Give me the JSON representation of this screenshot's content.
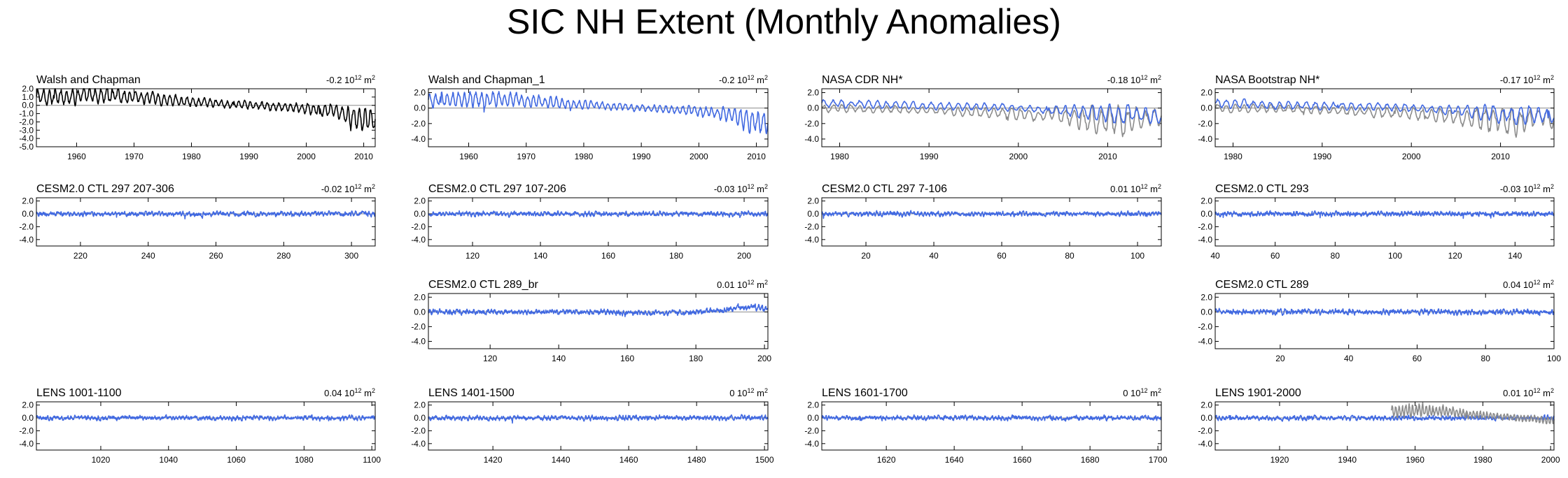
{
  "figure_title": "SIC NH Extent (Monthly Anomalies)",
  "unit_base": "10",
  "unit_exp": "12",
  "unit_m": "m",
  "unit_exp2": "2",
  "colors": {
    "obs": "#000000",
    "model": "#4169e1",
    "overlay": "#8c8c8c",
    "zeroline": "#8c8c8c",
    "axis": "#000000"
  },
  "chart_data": [
    {
      "type": "line",
      "title": "Walsh and Chapman",
      "stat": "-0.2",
      "xlim": [
        1953,
        2012
      ],
      "ylim": [
        -5,
        2
      ],
      "yticks": [
        "2.0",
        "1.0",
        "0.0",
        "-1.0",
        "-2.0",
        "-3.0",
        "-4.0",
        "-5.0"
      ],
      "xticks": [
        "1960",
        "1970",
        "1980",
        "1990",
        "2000",
        "2010"
      ],
      "series": [
        {
          "name": "Walsh and Chapman",
          "color": "#000000",
          "x": [
            1953,
            1958,
            1963,
            1968,
            1973,
            1978,
            1983,
            1988,
            1993,
            1998,
            2003,
            2006,
            2008,
            2010,
            2012
          ],
          "y": [
            1.0,
            1.1,
            1.2,
            1.1,
            0.8,
            0.5,
            0.3,
            0.1,
            -0.1,
            -0.3,
            -0.6,
            -1.0,
            -1.6,
            -1.8,
            -1.6
          ],
          "amp": [
            0.8,
            0.8,
            0.8,
            0.7,
            0.6,
            0.5,
            0.4,
            0.4,
            0.4,
            0.5,
            0.6,
            0.8,
            1.2,
            1.2,
            1.2
          ],
          "osc": 1.0
        }
      ]
    },
    {
      "type": "line",
      "title": "Walsh and Chapman_1",
      "stat": "-0.2",
      "xlim": [
        1953,
        2012
      ],
      "ylim": [
        -5,
        2.5
      ],
      "yticks": [
        "2.0",
        "0.0",
        "-2.0",
        "-4.0"
      ],
      "xticks": [
        "1960",
        "1970",
        "1980",
        "1990",
        "2000",
        "2010"
      ],
      "series": [
        {
          "name": "Walsh and Chapman_1",
          "color": "#4169e1",
          "x": [
            1953,
            1958,
            1963,
            1968,
            1973,
            1978,
            1983,
            1988,
            1993,
            1998,
            2003,
            2006,
            2008,
            2010,
            2012
          ],
          "y": [
            1.0,
            1.1,
            1.2,
            1.1,
            0.8,
            0.5,
            0.3,
            0.1,
            -0.1,
            -0.3,
            -0.6,
            -1.0,
            -1.6,
            -1.8,
            -1.6
          ],
          "amp": [
            0.8,
            0.8,
            0.8,
            0.7,
            0.6,
            0.5,
            0.4,
            0.4,
            0.4,
            0.5,
            0.6,
            0.8,
            1.2,
            1.2,
            1.2
          ],
          "osc": 1.0
        }
      ]
    },
    {
      "type": "line",
      "title": "NASA CDR NH*",
      "stat": "-0.18",
      "xlim": [
        1978,
        2016
      ],
      "ylim": [
        -5,
        2.5
      ],
      "yticks": [
        "2.0",
        "0.0",
        "-2.0",
        "-4.0"
      ],
      "xticks": [
        "1980",
        "1990",
        "2000",
        "2010"
      ],
      "series": [
        {
          "name": "NASA CDR NH* (grey)",
          "color": "#8c8c8c",
          "x": [
            1978,
            1985,
            1990,
            1995,
            2000,
            2003,
            2006,
            2008,
            2010,
            2012,
            2014,
            2016
          ],
          "y": [
            0.0,
            -0.1,
            -0.3,
            -0.5,
            -0.7,
            -0.9,
            -1.2,
            -1.5,
            -1.6,
            -1.8,
            -1.2,
            -1.3
          ],
          "amp": [
            0.4,
            0.4,
            0.4,
            0.5,
            0.6,
            0.7,
            0.9,
            1.4,
            1.4,
            1.5,
            1.0,
            0.9
          ],
          "osc": 1.0
        },
        {
          "name": "NASA CDR NH* (blue)",
          "color": "#4169e1",
          "x": [
            1978,
            1985,
            1990,
            1995,
            2000,
            2003,
            2006,
            2008,
            2010,
            2012,
            2014,
            2016
          ],
          "y": [
            0.6,
            0.4,
            0.3,
            0.2,
            0.0,
            -0.2,
            -0.4,
            -0.6,
            -0.7,
            -0.8,
            -0.9,
            -1.0
          ],
          "amp": [
            0.5,
            0.4,
            0.4,
            0.4,
            0.4,
            0.4,
            0.6,
            0.9,
            0.9,
            1.0,
            0.8,
            0.7
          ],
          "osc": 1.0
        }
      ]
    },
    {
      "type": "line",
      "title": "NASA Bootstrap NH*",
      "stat": "-0.17",
      "xlim": [
        1978,
        2016
      ],
      "ylim": [
        -5,
        2.5
      ],
      "yticks": [
        "2.0",
        "0.0",
        "-2.0",
        "-4.0"
      ],
      "xticks": [
        "1980",
        "1990",
        "2000",
        "2010"
      ],
      "series": [
        {
          "name": "NASA Bootstrap NH* (grey)",
          "color": "#8c8c8c",
          "x": [
            1978,
            1985,
            1990,
            1995,
            2000,
            2003,
            2006,
            2008,
            2010,
            2012,
            2014,
            2016
          ],
          "y": [
            0.0,
            -0.1,
            -0.3,
            -0.5,
            -0.7,
            -0.9,
            -1.2,
            -1.5,
            -1.6,
            -1.8,
            -1.2,
            -1.3
          ],
          "amp": [
            0.4,
            0.4,
            0.4,
            0.5,
            0.6,
            0.7,
            0.9,
            1.4,
            1.4,
            1.5,
            1.0,
            0.9
          ],
          "osc": 1.0
        },
        {
          "name": "NASA Bootstrap NH* (blue)",
          "color": "#4169e1",
          "x": [
            1978,
            1985,
            1990,
            1995,
            2000,
            2003,
            2006,
            2008,
            2010,
            2012,
            2014,
            2016
          ],
          "y": [
            0.6,
            0.4,
            0.3,
            0.2,
            0.0,
            -0.2,
            -0.4,
            -0.6,
            -0.7,
            -0.8,
            -0.9,
            -1.0
          ],
          "amp": [
            0.5,
            0.4,
            0.4,
            0.4,
            0.4,
            0.4,
            0.6,
            0.9,
            0.9,
            1.0,
            0.8,
            0.7
          ],
          "osc": 1.0
        }
      ]
    },
    {
      "type": "line",
      "title": "CESM2.0 CTL 297 207-306",
      "stat": "-0.02",
      "xlim": [
        207,
        307
      ],
      "ylim": [
        -5,
        2.5
      ],
      "yticks": [
        "2.0",
        "0.0",
        "-2.0",
        "-4.0"
      ],
      "xticks": [
        "220",
        "240",
        "260",
        "280",
        "300"
      ],
      "series": [
        {
          "name": "CESM2.0 CTL 297 207-306",
          "color": "#4169e1",
          "x": [
            207,
            307
          ],
          "y": [
            0.0,
            0.0
          ],
          "amp": [
            0.4,
            0.4
          ],
          "osc": 0.3
        }
      ]
    },
    {
      "type": "line",
      "title": "CESM2.0 CTL 297 107-206",
      "stat": "-0.03",
      "xlim": [
        107,
        207
      ],
      "ylim": [
        -5,
        2.5
      ],
      "yticks": [
        "2.0",
        "0.0",
        "-2.0",
        "-4.0"
      ],
      "xticks": [
        "120",
        "140",
        "160",
        "180",
        "200"
      ],
      "series": [
        {
          "name": "CESM2.0 CTL 297 107-206",
          "color": "#4169e1",
          "x": [
            107,
            207
          ],
          "y": [
            0.0,
            0.0
          ],
          "amp": [
            0.4,
            0.4
          ],
          "osc": 0.3
        }
      ]
    },
    {
      "type": "line",
      "title": "CESM2.0 CTL 297 7-106",
      "stat": "0.01",
      "xlim": [
        7,
        107
      ],
      "ylim": [
        -5,
        2.5
      ],
      "yticks": [
        "2.0",
        "0.0",
        "-2.0",
        "-4.0"
      ],
      "xticks": [
        "20",
        "40",
        "60",
        "80",
        "100"
      ],
      "series": [
        {
          "name": "CESM2.0 CTL 297 7-106",
          "color": "#4169e1",
          "x": [
            7,
            107
          ],
          "y": [
            0.0,
            0.0
          ],
          "amp": [
            0.4,
            0.4
          ],
          "osc": 0.3
        }
      ]
    },
    {
      "type": "line",
      "title": "CESM2.0 CTL 293",
      "stat": "-0.03",
      "xlim": [
        40,
        153
      ],
      "ylim": [
        -5,
        2.5
      ],
      "yticks": [
        "2.0",
        "0.0",
        "-2.0",
        "-4.0"
      ],
      "xticks": [
        "40",
        "60",
        "80",
        "100",
        "120",
        "140"
      ],
      "series": [
        {
          "name": "CESM2.0 CTL 293",
          "color": "#4169e1",
          "x": [
            40,
            153
          ],
          "y": [
            0.0,
            0.0
          ],
          "amp": [
            0.4,
            0.4
          ],
          "osc": 0.3
        }
      ]
    },
    {
      "type": "line",
      "title": "CESM2.0 CTL 289_br",
      "stat": "0.01",
      "xlim": [
        102,
        201
      ],
      "ylim": [
        -5,
        2.5
      ],
      "yticks": [
        "2.0",
        "0.0",
        "-2.0",
        "-4.0"
      ],
      "xticks": [
        "120",
        "140",
        "160",
        "180",
        "200"
      ],
      "series": [
        {
          "name": "CESM2.0 CTL 289_br",
          "color": "#4169e1",
          "x": [
            102,
            150,
            170,
            185,
            195,
            201
          ],
          "y": [
            0.0,
            0.0,
            -0.2,
            0.1,
            0.7,
            0.4
          ],
          "amp": [
            0.4,
            0.4,
            0.4,
            0.4,
            0.5,
            0.4
          ],
          "osc": 0.3
        }
      ]
    },
    {
      "type": "line",
      "title": "CESM2.0 CTL 289",
      "stat": "0.04",
      "xlim": [
        1,
        100
      ],
      "ylim": [
        -5,
        2.5
      ],
      "yticks": [
        "2.0",
        "0.0",
        "-2.0",
        "-4.0"
      ],
      "xticks": [
        "20",
        "40",
        "60",
        "80",
        "100"
      ],
      "series": [
        {
          "name": "CESM2.0 CTL 289",
          "color": "#4169e1",
          "x": [
            1,
            100
          ],
          "y": [
            0.0,
            0.0
          ],
          "amp": [
            0.4,
            0.4
          ],
          "osc": 0.3
        }
      ]
    },
    {
      "type": "line",
      "title": "LENS 1001-1100",
      "stat": "0.04",
      "xlim": [
        1001,
        1101
      ],
      "ylim": [
        -5,
        2.5
      ],
      "yticks": [
        "2.0",
        "0.0",
        "-2.0",
        "-4.0"
      ],
      "xticks": [
        "1020",
        "1040",
        "1060",
        "1080",
        "1100"
      ],
      "series": [
        {
          "name": "LENS 1001-1100",
          "color": "#4169e1",
          "x": [
            1001,
            1101
          ],
          "y": [
            0.0,
            0.0
          ],
          "amp": [
            0.4,
            0.4
          ],
          "osc": 0.3
        }
      ]
    },
    {
      "type": "line",
      "title": "LENS 1401-1500",
      "stat": "0",
      "xlim": [
        1401,
        1501
      ],
      "ylim": [
        -5,
        2.5
      ],
      "yticks": [
        "2.0",
        "0.0",
        "-2.0",
        "-4.0"
      ],
      "xticks": [
        "1420",
        "1440",
        "1460",
        "1480",
        "1500"
      ],
      "series": [
        {
          "name": "LENS 1401-1500",
          "color": "#4169e1",
          "x": [
            1401,
            1501
          ],
          "y": [
            0.0,
            0.0
          ],
          "amp": [
            0.4,
            0.4
          ],
          "osc": 0.3
        }
      ]
    },
    {
      "type": "line",
      "title": "LENS 1601-1700",
      "stat": "0",
      "xlim": [
        1601,
        1701
      ],
      "ylim": [
        -5,
        2.5
      ],
      "yticks": [
        "2.0",
        "0.0",
        "-2.0",
        "-4.0"
      ],
      "xticks": [
        "1620",
        "1640",
        "1660",
        "1680",
        "1700"
      ],
      "series": [
        {
          "name": "LENS 1601-1700",
          "color": "#4169e1",
          "x": [
            1601,
            1701
          ],
          "y": [
            0.0,
            0.0
          ],
          "amp": [
            0.4,
            0.4
          ],
          "osc": 0.3
        }
      ]
    },
    {
      "type": "line",
      "title": "LENS 1901-2000",
      "stat": "0.01",
      "xlim": [
        1901,
        2001
      ],
      "ylim": [
        -5,
        2.5
      ],
      "yticks": [
        "2.0",
        "0.0",
        "-2.0",
        "-4.0"
      ],
      "xticks": [
        "1920",
        "1940",
        "1960",
        "1980",
        "2000"
      ],
      "series": [
        {
          "name": "LENS 1901-2000 (blue)",
          "color": "#4169e1",
          "x": [
            1901,
            2001
          ],
          "y": [
            0.0,
            0.0
          ],
          "amp": [
            0.4,
            0.4
          ],
          "osc": 0.3
        },
        {
          "name": "LENS 1901-2000 (obs overlay)",
          "color": "#8c8c8c",
          "x": [
            1953,
            1958,
            1963,
            1968,
            1973,
            1978,
            1983,
            1988,
            1993,
            1998,
            2001
          ],
          "y": [
            1.0,
            1.1,
            1.2,
            1.1,
            0.8,
            0.5,
            0.3,
            0.1,
            -0.1,
            -0.3,
            -0.5
          ],
          "amp": [
            0.8,
            0.8,
            0.8,
            0.7,
            0.6,
            0.5,
            0.4,
            0.4,
            0.4,
            0.5,
            0.6
          ],
          "osc": 1.0
        }
      ]
    }
  ]
}
